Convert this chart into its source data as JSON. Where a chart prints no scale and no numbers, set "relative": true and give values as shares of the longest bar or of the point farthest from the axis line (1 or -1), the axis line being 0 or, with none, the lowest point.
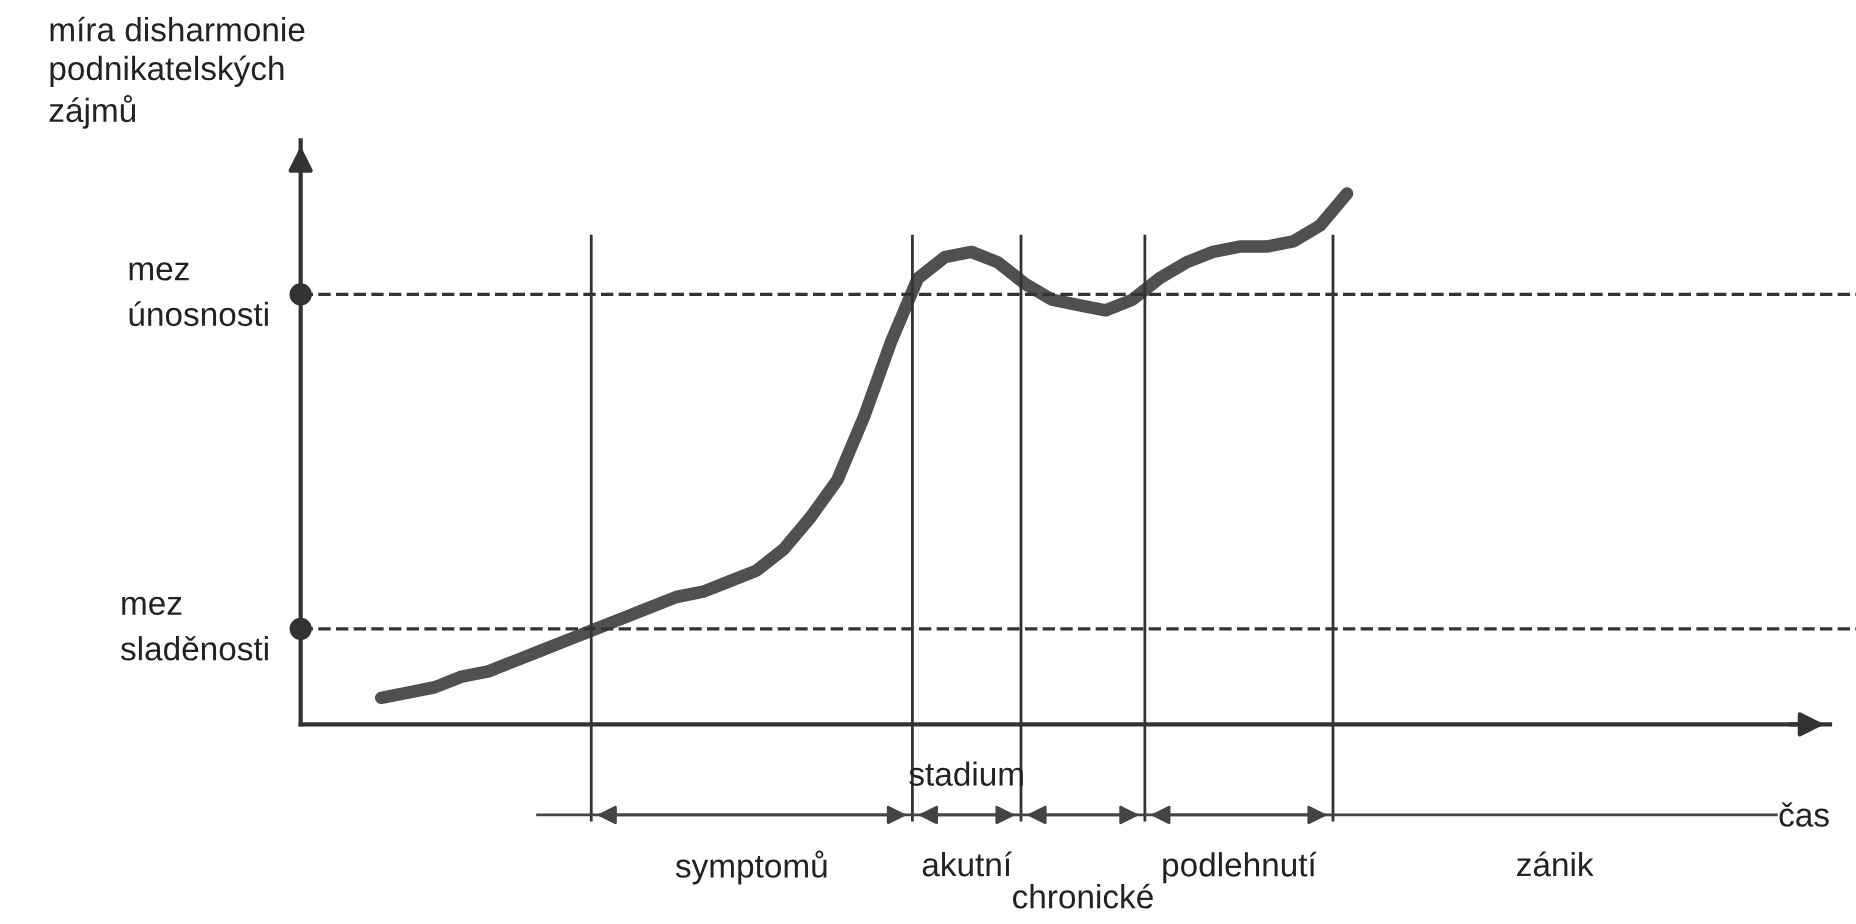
{
  "chart_data": {
    "type": "line",
    "relative": true,
    "ylabel": "míra disharmonie\npodnikatelských\nzájmů",
    "xlabel": "čas",
    "categories": [
      null,
      null,
      null,
      null,
      null,
      null,
      null,
      null,
      null,
      null,
      null,
      null,
      null,
      null,
      null,
      null,
      null,
      null,
      null,
      null,
      null,
      null,
      null,
      null,
      null,
      null,
      null,
      null,
      null,
      null,
      null,
      null,
      null,
      null,
      null,
      null,
      null,
      null,
      null,
      null,
      null,
      null,
      null,
      null,
      null,
      null,
      null,
      null,
      null,
      null,
      null,
      null,
      null,
      null,
      null,
      null,
      null,
      null
    ],
    "series": [
      {
        "color": "#505050",
        "values": [
          null,
          null,
          null,
          0.05,
          0.06,
          0.07,
          0.09,
          0.1,
          0.12,
          0.14,
          0.16,
          0.18,
          0.2,
          0.22,
          0.24,
          0.25,
          0.27,
          0.29,
          0.33,
          0.39,
          0.46,
          0.58,
          0.72,
          0.84,
          0.88,
          0.89,
          0.87,
          0.83,
          0.8,
          0.79,
          0.78,
          0.8,
          0.84,
          0.87,
          0.89,
          0.9,
          0.9,
          0.91,
          0.94,
          1.0,
          null,
          null,
          null,
          null,
          null,
          null,
          null,
          null,
          null,
          null,
          null,
          null,
          null,
          null,
          null,
          null,
          null,
          null
        ]
      }
    ],
    "ref_lines": [
      {
        "axis": "y",
        "value": 0.81,
        "label": "mez\núnosnosti",
        "line_style": "dashed",
        "color": "#333333"
      },
      {
        "axis": "y",
        "value": 0.18,
        "label": "mez\nsladěnosti",
        "line_style": "dashed",
        "color": "#333333"
      }
    ],
    "annotations": [
      "stadium",
      "symptomů",
      "akutní",
      "chronické",
      "podlehnutí",
      "zánik"
    ],
    "marker": "none",
    "line_style": "solid",
    "grid": "x"
  }
}
